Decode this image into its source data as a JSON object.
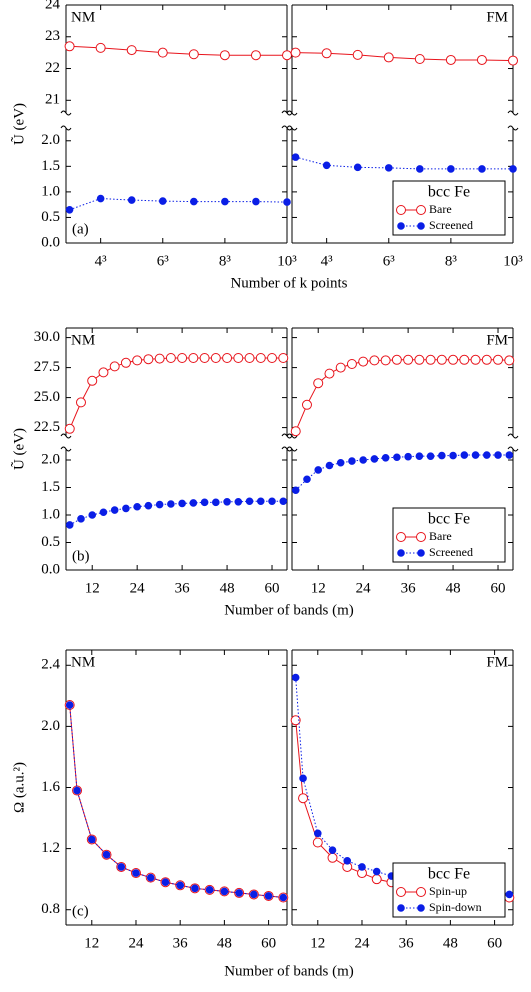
{
  "chart_data": [
    {
      "type": "line",
      "panel_label": "(a)",
      "x_label": "Number of k points",
      "y_label": "Ũ (eV)",
      "subplots": [
        "NM",
        "FM"
      ],
      "x_scale": "cube-root",
      "x": [
        27,
        64,
        125,
        216,
        343,
        512,
        729,
        1000
      ],
      "xlim": [
        24,
        1000
      ],
      "xticks": [
        {
          "value": 64,
          "label": "4³"
        },
        {
          "value": 216,
          "label": "6³"
        },
        {
          "value": 512,
          "label": "8³"
        },
        {
          "value": 1000,
          "label": "10³"
        }
      ],
      "ylim": [
        0,
        2.25
      ],
      "yticks": [
        {
          "value": 0,
          "label": "0.0"
        },
        0.5,
        {
          "value": 1,
          "label": "1.0"
        },
        1.5,
        {
          "value": 2,
          "label": "2.0"
        }
      ],
      "ylim_break": [
        20.6,
        24
      ],
      "yticks_break": [
        21,
        22,
        23,
        24
      ],
      "legend": {
        "title": "bcc Fe",
        "corner": "lower right"
      },
      "series": [
        {
          "name": "Bare",
          "color": "#e8141c",
          "marker": "open",
          "linestyle": "solid",
          "axis": "break",
          "values": [
            [
              22.7,
              22.65,
              22.58,
              22.5,
              22.45,
              22.42,
              22.42,
              22.42
            ],
            [
              22.5,
              22.48,
              22.43,
              22.35,
              22.3,
              22.27,
              22.27,
              22.25
            ]
          ]
        },
        {
          "name": "Screened",
          "color": "#0a1ee6",
          "marker": "dot",
          "linestyle": "dotted",
          "values": [
            [
              0.65,
              0.87,
              0.84,
              0.82,
              0.81,
              0.81,
              0.81,
              0.8
            ],
            [
              1.68,
              1.52,
              1.48,
              1.47,
              1.45,
              1.45,
              1.45,
              1.45
            ]
          ]
        }
      ]
    },
    {
      "type": "line",
      "panel_label": "(b)",
      "x_label": "Number of bands  (m)",
      "y_label": "Ũ (eV)",
      "subplots": [
        "NM",
        "FM"
      ],
      "x": [
        6,
        9,
        12,
        15,
        18,
        21,
        24,
        27,
        30,
        33,
        36,
        39,
        42,
        45,
        48,
        51,
        54,
        57,
        60,
        63
      ],
      "xlim": [
        5,
        64
      ],
      "xticks": [
        12,
        24,
        36,
        48,
        60
      ],
      "ylim": [
        0,
        2.2
      ],
      "yticks": [
        {
          "value": 0,
          "label": "0.0"
        },
        0.5,
        {
          "value": 1,
          "label": "1.0"
        },
        1.5,
        {
          "value": 2,
          "label": "2.0"
        }
      ],
      "ylim_break": [
        21.8,
        30.8
      ],
      "yticks_break": [
        22.5,
        {
          "value": 25,
          "label": "25.0"
        },
        27.5,
        {
          "value": 30,
          "label": "30.0"
        }
      ],
      "legend": {
        "title": "bcc Fe",
        "corner": "lower right"
      },
      "series": [
        {
          "name": "Bare",
          "color": "#e8141c",
          "marker": "open",
          "linestyle": "solid",
          "axis": "break",
          "values": [
            [
              22.4,
              24.6,
              26.4,
              27.1,
              27.6,
              27.9,
              28.1,
              28.2,
              28.25,
              28.3,
              28.3,
              28.3,
              28.3,
              28.3,
              28.3,
              28.3,
              28.3,
              28.3,
              28.3,
              28.3
            ],
            [
              22.2,
              24.4,
              26.2,
              27.0,
              27.5,
              27.8,
              28.0,
              28.1,
              28.1,
              28.15,
              28.15,
              28.15,
              28.15,
              28.15,
              28.15,
              28.15,
              28.15,
              28.15,
              28.15,
              28.1
            ]
          ]
        },
        {
          "name": "Screened",
          "color": "#0a1ee6",
          "marker": "dot",
          "linestyle": "dotted",
          "values": [
            [
              0.82,
              0.93,
              1.0,
              1.05,
              1.09,
              1.12,
              1.15,
              1.17,
              1.19,
              1.2,
              1.21,
              1.22,
              1.23,
              1.23,
              1.24,
              1.24,
              1.25,
              1.25,
              1.25,
              1.25
            ],
            [
              1.45,
              1.65,
              1.82,
              1.9,
              1.95,
              1.98,
              2.0,
              2.02,
              2.04,
              2.05,
              2.06,
              2.07,
              2.07,
              2.08,
              2.08,
              2.09,
              2.09,
              2.09,
              2.09,
              2.09
            ]
          ]
        }
      ]
    },
    {
      "type": "line",
      "panel_label": "(c)",
      "x_label": "Number of bands  (m)",
      "y_label": "Ω  (a.u.²)",
      "subplots": [
        "NM",
        "FM"
      ],
      "x": [
        6,
        8,
        12,
        16,
        20,
        24,
        28,
        32,
        36,
        40,
        44,
        48,
        52,
        56,
        60,
        64
      ],
      "xlim": [
        5,
        65
      ],
      "xticks": [
        12,
        24,
        36,
        48,
        60
      ],
      "ylim": [
        0.7,
        2.5
      ],
      "yticks": [
        0.8,
        1.2,
        1.6,
        {
          "value": 2,
          "label": "2.0"
        },
        2.4
      ],
      "legend": {
        "title": "bcc Fe",
        "corner": "lower right"
      },
      "series": [
        {
          "name": "Spin-up",
          "color": "#e8141c",
          "marker": "open",
          "linestyle": "solid",
          "values": [
            [
              2.14,
              1.58,
              1.26,
              1.16,
              1.08,
              1.04,
              1.01,
              0.98,
              0.96,
              0.94,
              0.93,
              0.92,
              0.91,
              0.9,
              0.89,
              0.88
            ],
            [
              2.04,
              1.53,
              1.24,
              1.14,
              1.08,
              1.04,
              1.0,
              0.98,
              0.96,
              0.94,
              0.93,
              0.92,
              0.91,
              0.9,
              0.89,
              0.88
            ]
          ]
        },
        {
          "name": "Spin-down",
          "color": "#0a1ee6",
          "marker": "dot",
          "linestyle": "dotted",
          "values": [
            [
              2.14,
              1.58,
              1.26,
              1.16,
              1.08,
              1.04,
              1.01,
              0.98,
              0.96,
              0.94,
              0.93,
              0.92,
              0.91,
              0.9,
              0.89,
              0.88
            ],
            [
              2.32,
              1.66,
              1.3,
              1.19,
              1.12,
              1.08,
              1.05,
              1.02,
              1.0,
              0.98,
              0.97,
              0.96,
              0.95,
              0.94,
              0.93,
              0.9
            ]
          ]
        }
      ]
    }
  ]
}
